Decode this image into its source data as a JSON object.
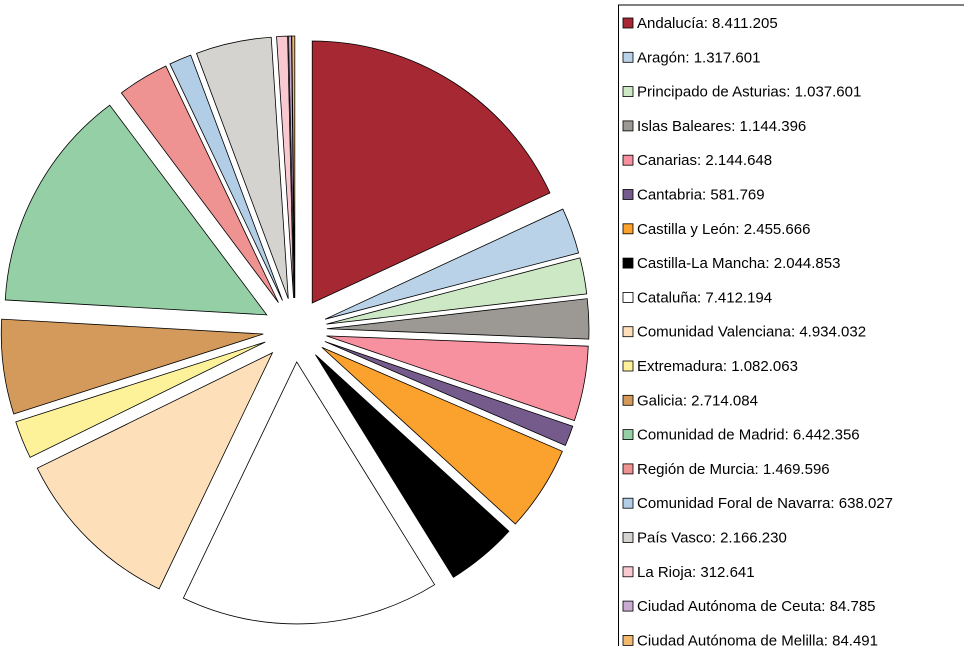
{
  "chart_data": {
    "type": "pie",
    "categories": [
      "Andalucía: 8.411.205",
      "Aragón: 1.317.601",
      "Principado de Asturias: 1.037.601",
      "Islas Baleares: 1.144.396",
      "Canarias: 2.144.648",
      "Cantabria: 581.769",
      "Castilla y León: 2.455.666",
      "Castilla-La Mancha: 2.044.853",
      "Cataluña: 7.412.194",
      "Comunidad Valenciana: 4.934.032",
      "Extremadura: 1.082.063",
      "Galicia: 2.714.084",
      "Comunidad de Madrid: 6.442.356",
      "Región de Murcia: 1.469.596",
      "Comunidad Foral de Navarra: 638.027",
      "País Vasco: 2.166.230",
      "La Rioja: 312.641",
      "Ciudad Autónoma de Ceuta: 84.785",
      "Ciudad Autónoma de Melilla: 84.491"
    ],
    "values": [
      8411205,
      1317601,
      1037601,
      1144396,
      2144648,
      581769,
      2455666,
      2044853,
      7412194,
      4934032,
      1082063,
      2714084,
      6442356,
      1469596,
      638027,
      2166230,
      312641,
      84785,
      84491
    ],
    "colors": [
      "#a52833",
      "#b9d2e8",
      "#cde8c5",
      "#9c9894",
      "#f7909f",
      "#755a8c",
      "#fba12e",
      "#000000",
      "#ffffff",
      "#fde0b9",
      "#fdf29a",
      "#d49a5b",
      "#95cfa5",
      "#ef9392",
      "#b2cde6",
      "#d5d3cf",
      "#f9c9d1",
      "#c9aad2",
      "#f2b96f"
    ],
    "legend": "right"
  }
}
